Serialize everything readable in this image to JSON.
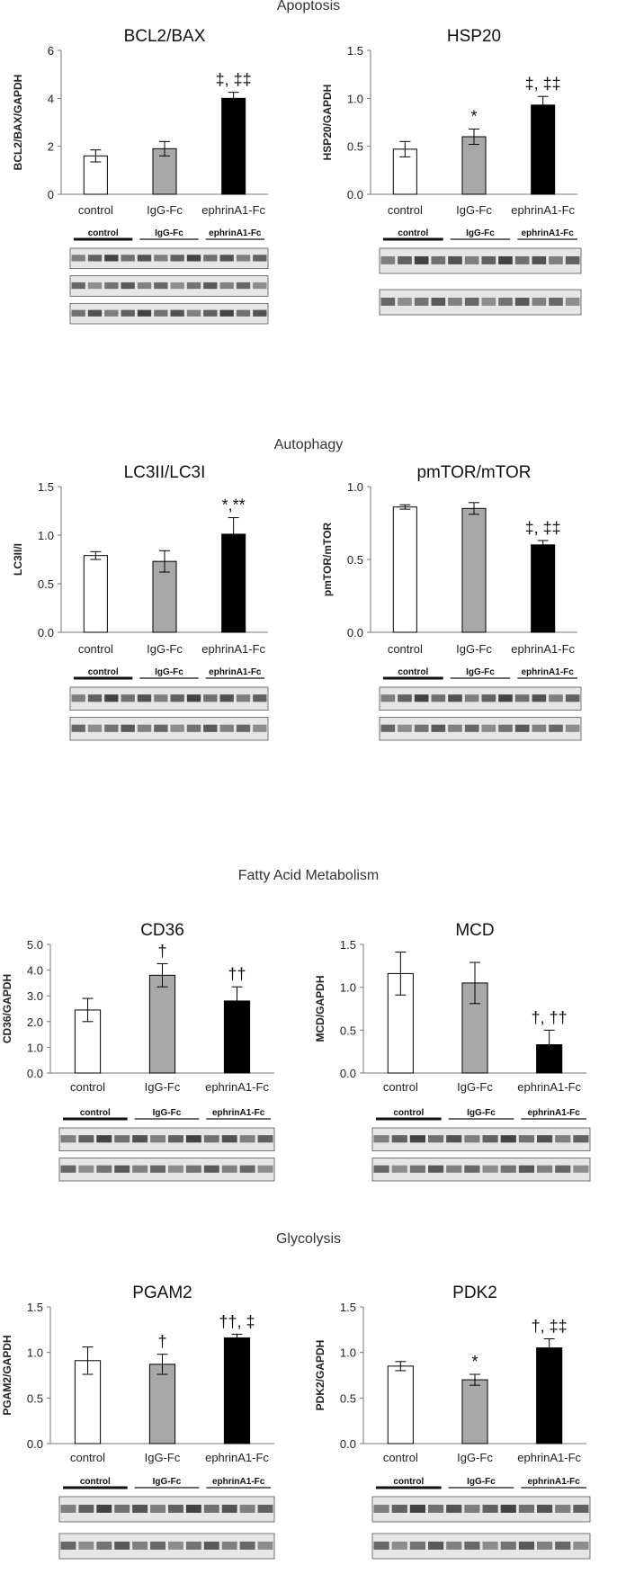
{
  "sections": [
    {
      "title": "Apoptosis"
    },
    {
      "title": "Autophagy"
    },
    {
      "title": "Fatty Acid Metabolism"
    },
    {
      "title": "Glycolysis"
    }
  ],
  "chart_data": [
    {
      "type": "bar",
      "title": "BCL2/BAX",
      "ylabel": "BCL2/BAX/GAPDH",
      "categories": [
        "control",
        "IgG-Fc",
        "ephrinA1-Fc"
      ],
      "values": [
        1.6,
        1.9,
        4.0
      ],
      "errors": [
        0.25,
        0.3,
        0.25
      ],
      "annotations": [
        "",
        "",
        "‡, ‡‡"
      ],
      "ylim": [
        0,
        6
      ],
      "yticks": [
        "0",
        "2",
        "4",
        "6"
      ],
      "ytick_values": [
        0,
        2,
        4,
        6
      ],
      "bar_colors": [
        "#ffffff",
        "#a8a8a8",
        "#000000"
      ],
      "blot_labels": [
        "control",
        "IgG-Fc",
        "ephrinA1-Fc"
      ]
    },
    {
      "type": "bar",
      "title": "HSP20",
      "ylabel": "HSP20/GAPDH",
      "categories": [
        "control",
        "IgG-Fc",
        "ephrinA1-Fc"
      ],
      "values": [
        0.47,
        0.6,
        0.93
      ],
      "errors": [
        0.08,
        0.08,
        0.09
      ],
      "annotations": [
        "",
        "*",
        "‡, ‡‡"
      ],
      "ylim": [
        0,
        1.5
      ],
      "yticks": [
        "0.0",
        "0.5",
        "1.0",
        "1.5"
      ],
      "ytick_values": [
        0,
        0.5,
        1.0,
        1.5
      ],
      "bar_colors": [
        "#ffffff",
        "#a8a8a8",
        "#000000"
      ],
      "blot_labels": [
        "control",
        "IgG-Fc",
        "ephrinA1-Fc"
      ]
    },
    {
      "type": "bar",
      "title": "LC3II/LC3I",
      "ylabel": "LC3II/I",
      "categories": [
        "control",
        "IgG-Fc",
        "ephrinA1-Fc"
      ],
      "values": [
        0.79,
        0.73,
        1.01
      ],
      "errors": [
        0.04,
        0.11,
        0.17
      ],
      "annotations": [
        "",
        "",
        "*,**"
      ],
      "ylim": [
        0,
        1.5
      ],
      "yticks": [
        "0.0",
        "0.5",
        "1.0",
        "1.5"
      ],
      "ytick_values": [
        0,
        0.5,
        1.0,
        1.5
      ],
      "bar_colors": [
        "#ffffff",
        "#a8a8a8",
        "#000000"
      ],
      "blot_labels": [
        "control",
        "IgG-Fc",
        "ephrinA1-Fc"
      ]
    },
    {
      "type": "bar",
      "title": "pmTOR/mTOR",
      "ylabel": "pmTOR/mTOR",
      "categories": [
        "control",
        "IgG-Fc",
        "ephrinA1-Fc"
      ],
      "values": [
        0.86,
        0.85,
        0.6
      ],
      "errors": [
        0.015,
        0.04,
        0.03
      ],
      "annotations": [
        "",
        "",
        "‡, ‡‡"
      ],
      "ylim": [
        0,
        1.0
      ],
      "yticks": [
        "0.0",
        "0.5",
        "1.0"
      ],
      "ytick_values": [
        0,
        0.5,
        1.0
      ],
      "bar_colors": [
        "#ffffff",
        "#a8a8a8",
        "#000000"
      ],
      "blot_labels": [
        "control",
        "IgG-Fc",
        "ephrinA1-Fc"
      ]
    },
    {
      "type": "bar",
      "title": "CD36",
      "ylabel": "CD36/GAPDH",
      "categories": [
        "control",
        "IgG-Fc",
        "ephrinA1-Fc"
      ],
      "values": [
        2.45,
        3.8,
        2.8
      ],
      "errors": [
        0.45,
        0.45,
        0.55
      ],
      "annotations": [
        "",
        "†",
        "††"
      ],
      "ylim": [
        0,
        5
      ],
      "yticks": [
        "0.0",
        "1.0",
        "2.0",
        "3.0",
        "4.0",
        "5.0"
      ],
      "ytick_values": [
        0,
        1,
        2,
        3,
        4,
        5
      ],
      "bar_colors": [
        "#ffffff",
        "#a8a8a8",
        "#000000"
      ],
      "blot_labels": [
        "control",
        "IgG-Fc",
        "ephrinA1-Fc"
      ]
    },
    {
      "type": "bar",
      "title": "MCD",
      "ylabel": "MCD/GAPDH",
      "categories": [
        "control",
        "IgG-Fc",
        "ephrinA1-Fc"
      ],
      "values": [
        1.16,
        1.05,
        0.33
      ],
      "errors": [
        0.25,
        0.24,
        0.17
      ],
      "annotations": [
        "",
        "",
        "†, ††"
      ],
      "ylim": [
        0,
        1.5
      ],
      "yticks": [
        "0.0",
        "0.5",
        "1.0",
        "1.5"
      ],
      "ytick_values": [
        0,
        0.5,
        1.0,
        1.5
      ],
      "bar_colors": [
        "#ffffff",
        "#a8a8a8",
        "#000000"
      ],
      "blot_labels": [
        "control",
        "IgG-Fc",
        "ephrinA1-Fc"
      ]
    },
    {
      "type": "bar",
      "title": "PGAM2",
      "ylabel": "PGAM2/GAPDH",
      "categories": [
        "control",
        "IgG-Fc",
        "ephrinA1-Fc"
      ],
      "values": [
        0.91,
        0.87,
        1.16
      ],
      "errors": [
        0.15,
        0.11,
        0.04
      ],
      "annotations": [
        "",
        "†",
        "††, ‡"
      ],
      "ylim": [
        0,
        1.5
      ],
      "yticks": [
        "0.0",
        "0.5",
        "1.0",
        "1.5"
      ],
      "ytick_values": [
        0,
        0.5,
        1.0,
        1.5
      ],
      "bar_colors": [
        "#ffffff",
        "#a8a8a8",
        "#000000"
      ],
      "blot_labels": [
        "control",
        "IgG-Fc",
        "ephrinA1-Fc"
      ]
    },
    {
      "type": "bar",
      "title": "PDK2",
      "ylabel": "PDK2/GAPDH",
      "categories": [
        "control",
        "IgG-Fc",
        "ephrinA1-Fc"
      ],
      "values": [
        0.85,
        0.7,
        1.05
      ],
      "errors": [
        0.05,
        0.06,
        0.1
      ],
      "annotations": [
        "",
        "*",
        "†, ‡‡"
      ],
      "ylim": [
        0,
        1.5
      ],
      "yticks": [
        "0.0",
        "0.5",
        "1.0",
        "1.5"
      ],
      "ytick_values": [
        0,
        0.5,
        1.0,
        1.5
      ],
      "bar_colors": [
        "#ffffff",
        "#a8a8a8",
        "#000000"
      ],
      "blot_labels": [
        "control",
        "IgG-Fc",
        "ephrinA1-Fc"
      ]
    }
  ]
}
